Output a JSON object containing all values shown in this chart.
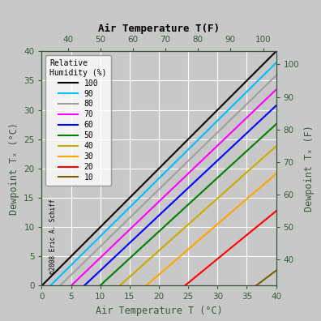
{
  "title_top": "Air Temperature T(F)",
  "xlabel_bottom": "Air Temperature T (°C)",
  "ylabel_left": "Dewpoint Tₓ (°C)",
  "ylabel_right": "Dewpoint Tₓ (F)",
  "annotation": "©2008 Eric A. Schiff",
  "legend_title": "Relative\nHumidity (%)",
  "humidity_levels": [
    100,
    90,
    80,
    70,
    60,
    50,
    40,
    30,
    20,
    10
  ],
  "colors": [
    "black",
    "#00bfff",
    "#a0a0a0",
    "magenta",
    "blue",
    "green",
    "#ccaa00",
    "orange",
    "red",
    "#7a6000"
  ],
  "T_C_min": 0,
  "T_C_max": 40,
  "T_C_step": 0.1,
  "background_color": "#c8c8c8",
  "plot_background": "#c8c8c8",
  "tick_color": "#3a5a3a",
  "label_color": "#3a5a3a",
  "title_color": "black",
  "figsize": [
    3.96,
    3.96
  ],
  "dpi": 100
}
